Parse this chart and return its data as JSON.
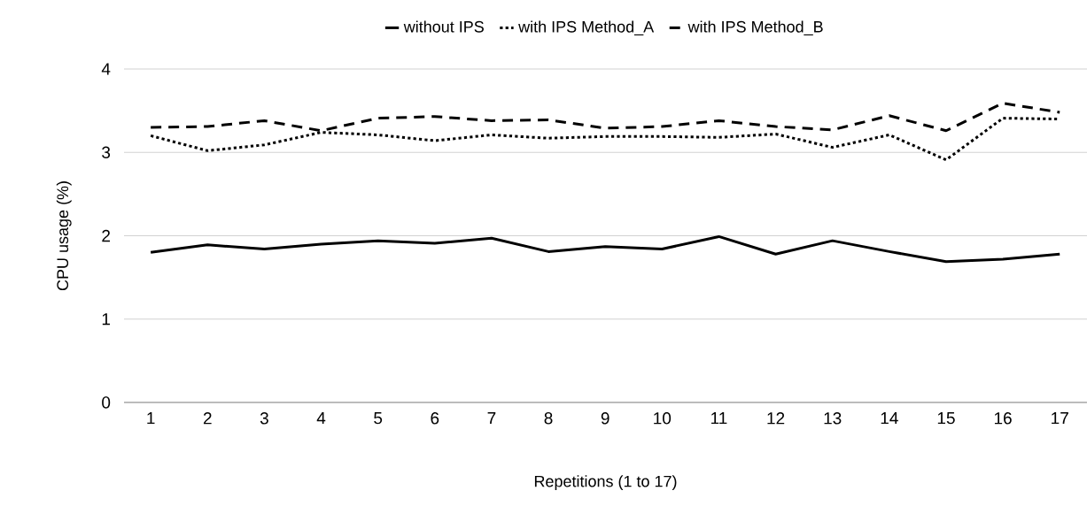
{
  "chart_data": {
    "type": "line",
    "categories": [
      "1",
      "2",
      "3",
      "4",
      "5",
      "6",
      "7",
      "8",
      "9",
      "10",
      "11",
      "12",
      "13",
      "14",
      "15",
      "16",
      "17"
    ],
    "xlabel": "Repetitions (1 to 17)",
    "ylabel": "CPU usage (%)",
    "ylim": [
      0,
      4
    ],
    "yticks": [
      0,
      1,
      2,
      3,
      4
    ],
    "grid": "y",
    "legend": "top",
    "series": [
      {
        "name": "without IPS",
        "color": "#000000",
        "line_style": "solid",
        "values": [
          1.8,
          1.89,
          1.84,
          1.9,
          1.94,
          1.91,
          1.97,
          1.81,
          1.87,
          1.84,
          1.99,
          1.78,
          1.94,
          1.81,
          1.69,
          1.72,
          1.78
        ]
      },
      {
        "name": "with IPS Method_A",
        "color": "#000000",
        "line_style": "dotted",
        "values": [
          3.2,
          3.02,
          3.09,
          3.24,
          3.21,
          3.14,
          3.21,
          3.17,
          3.19,
          3.19,
          3.18,
          3.22,
          3.06,
          3.21,
          2.91,
          3.41,
          3.4
        ]
      },
      {
        "name": "with IPS Method_B",
        "color": "#000000",
        "line_style": "dashed",
        "values": [
          3.3,
          3.31,
          3.38,
          3.26,
          3.41,
          3.43,
          3.38,
          3.39,
          3.29,
          3.31,
          3.38,
          3.31,
          3.27,
          3.44,
          3.26,
          3.59,
          3.48
        ]
      }
    ]
  }
}
